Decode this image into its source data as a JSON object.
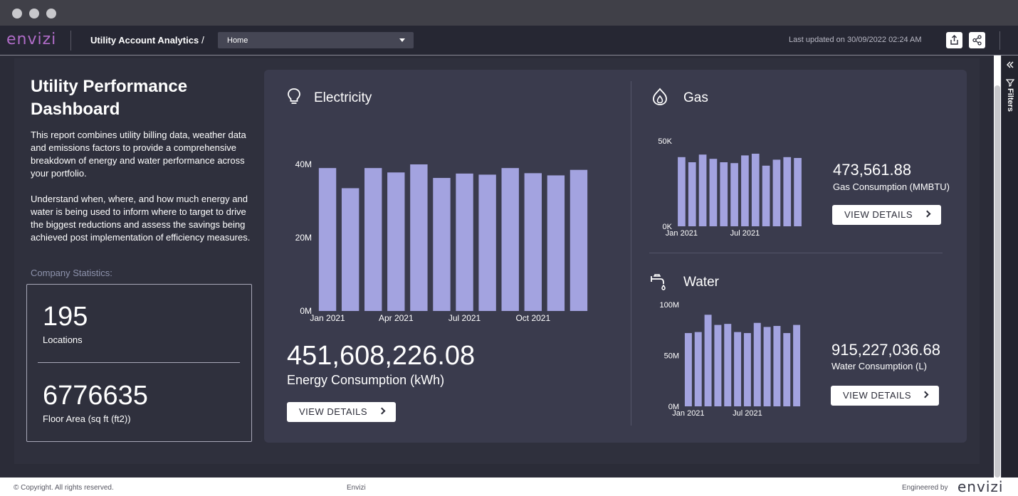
{
  "window": {
    "dot_colors": [
      "#c8c8cc",
      "#c8c8cc",
      "#c8c8cc"
    ]
  },
  "header": {
    "logo": "envizi",
    "app_title": "Utility Account Analytics",
    "breadcrumb_separator": "/",
    "page_select_value": "Home",
    "last_updated": "Last updated on 30/09/2022 02:24 AM",
    "share_icon": "share-icon",
    "export_icon": "export-icon"
  },
  "filters": {
    "label": "Filters"
  },
  "intro": {
    "title": "Utility Performance Dashboard",
    "paragraph1": "This report combines utility billing data, weather data and emissions factors to provide a comprehensive breakdown of energy and water performance across your portfolio.",
    "paragraph2": "Understand when, where, and how much energy and water is being used to inform where to target to drive the biggest reductions and assess the savings being achieved post implementation of efficiency measures.",
    "company_label": "Company Statistics:",
    "locations_value": "195",
    "locations_label": "Locations",
    "floor_area_value": "6776635",
    "floor_area_label": "Floor Area (sq ft (ft2))"
  },
  "electricity": {
    "title": "Electricity",
    "total": "451,608,226.08",
    "total_label": "Energy Consumption (kWh)",
    "button": "VIEW DETAILS"
  },
  "gas": {
    "title": "Gas",
    "total": "473,561.88",
    "total_label": "Gas Consumption (MMBTU)",
    "button": "VIEW DETAILS"
  },
  "water": {
    "title": "Water",
    "total": "915,227,036.68",
    "total_label": "Water Consumption (L)",
    "button": "VIEW DETAILS"
  },
  "footer": {
    "copyright": "© Copyright. All rights reserved.",
    "center": "Envizi",
    "engineered_by": "Engineered by",
    "logo": "envizi"
  },
  "colors": {
    "bar": "#a3a3e0",
    "card": "#3a3b4d",
    "accent_logo": "#b06cc8"
  },
  "chart_data": [
    {
      "type": "bar",
      "name_ref": "electricity",
      "x": [
        "Jan 2021",
        "Feb 2021",
        "Mar 2021",
        "Apr 2021",
        "May 2021",
        "Jun 2021",
        "Jul 2021",
        "Aug 2021",
        "Sep 2021",
        "Oct 2021",
        "Nov 2021",
        "Dec 2021"
      ],
      "values": [
        39000000,
        33500000,
        39000000,
        37800000,
        40000000,
        36300000,
        37500000,
        37200000,
        39000000,
        37600000,
        37000000,
        38500000
      ],
      "tick_labels_x": [
        "Jan 2021",
        "Apr 2021",
        "Jul 2021",
        "Oct 2021"
      ],
      "tick_labels_y": [
        "0M",
        "20M",
        "40M"
      ],
      "ylim": [
        0,
        40000000
      ],
      "grid": false
    },
    {
      "type": "bar",
      "name_ref": "gas",
      "x": [
        "Jan 2021",
        "Feb 2021",
        "Mar 2021",
        "Apr 2021",
        "May 2021",
        "Jun 2021",
        "Jul 2021",
        "Aug 2021",
        "Sep 2021",
        "Oct 2021",
        "Nov 2021",
        "Dec 2021"
      ],
      "values": [
        40500,
        37500,
        42000,
        39500,
        37500,
        37000,
        41500,
        42500,
        35500,
        39000,
        40500,
        40000
      ],
      "tick_labels_x": [
        "Jan 2021",
        "Jul 2021"
      ],
      "tick_labels_y": [
        "0K",
        "50K"
      ],
      "ylim": [
        0,
        50000
      ],
      "grid": false
    },
    {
      "type": "bar",
      "name_ref": "water",
      "x": [
        "Jan 2021",
        "Feb 2021",
        "Mar 2021",
        "Apr 2021",
        "May 2021",
        "Jun 2021",
        "Jul 2021",
        "Aug 2021",
        "Sep 2021",
        "Oct 2021",
        "Nov 2021",
        "Dec 2021"
      ],
      "values": [
        72000000,
        73000000,
        90000000,
        80000000,
        81000000,
        73000000,
        72000000,
        82000000,
        78000000,
        79000000,
        72000000,
        80000000
      ],
      "tick_labels_x": [
        "Jan 2021",
        "Jul 2021"
      ],
      "tick_labels_y": [
        "0M",
        "50M",
        "100M"
      ],
      "ylim": [
        0,
        100000000
      ],
      "grid": false
    }
  ]
}
